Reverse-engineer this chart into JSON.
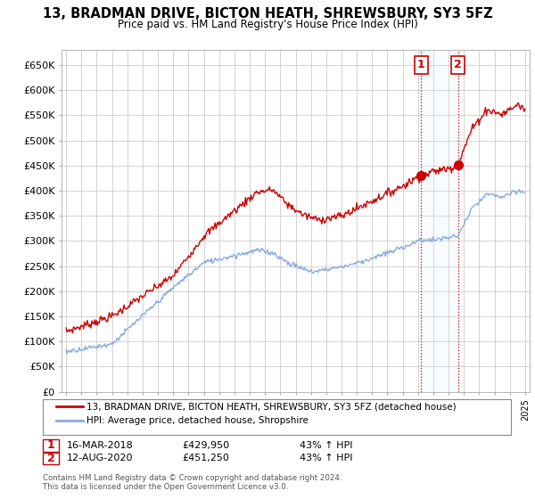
{
  "title": "13, BRADMAN DRIVE, BICTON HEATH, SHREWSBURY, SY3 5FZ",
  "subtitle": "Price paid vs. HM Land Registry's House Price Index (HPI)",
  "sale1_date": "16-MAR-2018",
  "sale1_price": 429950,
  "sale1_label": "43% ↑ HPI",
  "sale1_x": 2018.21,
  "sale1_y": 429950,
  "sale2_date": "12-AUG-2020",
  "sale2_price": 451250,
  "sale2_label": "43% ↑ HPI",
  "sale2_x": 2020.62,
  "sale2_y": 451250,
  "legend_line1": "13, BRADMAN DRIVE, BICTON HEATH, SHREWSBURY, SY3 5FZ (detached house)",
  "legend_line2": "HPI: Average price, detached house, Shropshire",
  "footnote": "Contains HM Land Registry data © Crown copyright and database right 2024.\nThis data is licensed under the Open Government Licence v3.0.",
  "ylim": [
    0,
    680000
  ],
  "yticks": [
    0,
    50000,
    100000,
    150000,
    200000,
    250000,
    300000,
    350000,
    400000,
    450000,
    500000,
    550000,
    600000,
    650000
  ],
  "xlim_start": 1994.7,
  "xlim_end": 2025.3,
  "red_color": "#cc0000",
  "blue_color": "#88aadd",
  "shade_color": "#ddeeff",
  "marker_color": "#cc0000",
  "bg_color": "#ffffff",
  "grid_color": "#cccccc",
  "anno_box_color": "#cc0000"
}
